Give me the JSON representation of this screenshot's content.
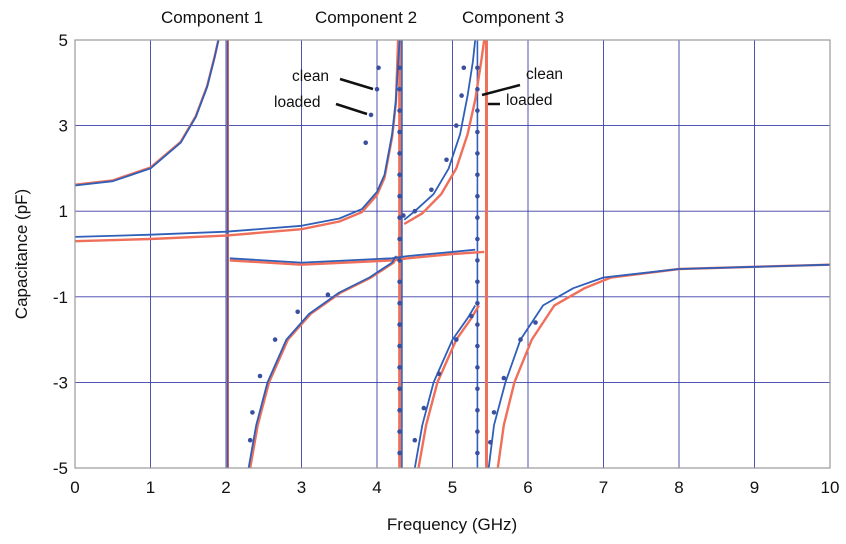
{
  "chart_data": {
    "type": "line",
    "title": "",
    "xlabel": "Frequency (GHz)",
    "ylabel": "Capacitance (pF)",
    "xlim": [
      0,
      10
    ],
    "ylim": [
      -5,
      5
    ],
    "xticks": [
      0,
      1,
      2,
      3,
      4,
      5,
      6,
      7,
      8,
      9,
      10
    ],
    "yticks": [
      -5,
      -3,
      -1,
      1,
      3,
      5
    ],
    "grid": true,
    "legend": "none",
    "component_labels": [
      "Component 1",
      "Component 2",
      "Component 3"
    ],
    "annotations": [
      "clean",
      "loaded",
      "clean",
      "loaded"
    ],
    "colors": {
      "clean": "#2f5fb8",
      "loaded": "#ef6f5a",
      "measured": "#3a4f9e",
      "grid": "#3a3fa8",
      "frame": "#9a9a9a",
      "background": "#ffffff"
    },
    "resonances": {
      "clean": [
        2.02,
        4.33,
        5.33
      ],
      "loaded": [
        2.02,
        4.3,
        5.45
      ]
    },
    "series": [
      {
        "style": "clean",
        "segments": [
          [
            [
              0.0,
              1.6
            ],
            [
              0.5,
              1.7
            ],
            [
              1.0,
              2.0
            ],
            [
              1.4,
              2.6
            ],
            [
              1.6,
              3.2
            ],
            [
              1.75,
              3.9
            ],
            [
              1.85,
              4.6
            ],
            [
              1.9,
              5.0
            ]
          ],
          [
            [
              2.3,
              -5.0
            ],
            [
              2.4,
              -4.0
            ],
            [
              2.55,
              -3.0
            ],
            [
              2.8,
              -2.0
            ],
            [
              3.1,
              -1.4
            ],
            [
              3.5,
              -0.9
            ],
            [
              3.9,
              -0.55
            ],
            [
              4.2,
              -0.2
            ],
            [
              4.25,
              -0.05
            ]
          ],
          [
            [
              0.0,
              0.4
            ],
            [
              1.0,
              0.45
            ],
            [
              2.0,
              0.52
            ],
            [
              3.0,
              0.66
            ],
            [
              3.5,
              0.83
            ],
            [
              3.8,
              1.05
            ],
            [
              4.0,
              1.45
            ],
            [
              4.1,
              1.85
            ],
            [
              4.2,
              2.8
            ],
            [
              4.25,
              3.6
            ],
            [
              4.3,
              5.0
            ]
          ],
          [
            [
              4.5,
              -5.0
            ],
            [
              4.6,
              -4.0
            ],
            [
              4.75,
              -3.0
            ],
            [
              5.0,
              -2.0
            ],
            [
              5.2,
              -1.5
            ],
            [
              5.3,
              -1.2
            ]
          ],
          [
            [
              4.36,
              0.8
            ],
            [
              4.5,
              1.0
            ],
            [
              4.75,
              1.4
            ],
            [
              4.95,
              2.0
            ],
            [
              5.1,
              2.8
            ],
            [
              5.2,
              3.7
            ],
            [
              5.27,
              4.5
            ],
            [
              5.3,
              5.0
            ]
          ],
          [
            [
              5.48,
              -5.0
            ],
            [
              5.55,
              -4.0
            ],
            [
              5.7,
              -3.0
            ],
            [
              5.9,
              -2.0
            ],
            [
              6.2,
              -1.2
            ],
            [
              6.6,
              -0.8
            ],
            [
              7.0,
              -0.55
            ],
            [
              8.0,
              -0.35
            ],
            [
              9.0,
              -0.3
            ],
            [
              10.0,
              -0.25
            ]
          ],
          [
            [
              2.05,
              -0.1
            ],
            [
              3.0,
              -0.2
            ],
            [
              4.2,
              -0.1
            ],
            [
              4.4,
              -0.05
            ],
            [
              5.0,
              0.05
            ],
            [
              5.3,
              0.1
            ]
          ]
        ]
      },
      {
        "style": "loaded",
        "segments": [
          [
            [
              0.0,
              1.62
            ],
            [
              0.5,
              1.72
            ],
            [
              1.0,
              2.02
            ],
            [
              1.4,
              2.62
            ],
            [
              1.6,
              3.22
            ],
            [
              1.75,
              3.92
            ],
            [
              1.85,
              4.62
            ],
            [
              1.9,
              5.0
            ]
          ],
          [
            [
              2.32,
              -5.0
            ],
            [
              2.42,
              -4.0
            ],
            [
              2.57,
              -3.0
            ],
            [
              2.82,
              -2.0
            ],
            [
              3.12,
              -1.4
            ],
            [
              3.52,
              -0.9
            ],
            [
              3.92,
              -0.55
            ],
            [
              4.22,
              -0.2
            ],
            [
              4.27,
              -0.05
            ]
          ],
          [
            [
              0.0,
              0.3
            ],
            [
              1.0,
              0.35
            ],
            [
              2.0,
              0.43
            ],
            [
              3.0,
              0.58
            ],
            [
              3.5,
              0.76
            ],
            [
              3.8,
              0.98
            ],
            [
              4.0,
              1.38
            ],
            [
              4.1,
              1.78
            ],
            [
              4.2,
              2.73
            ],
            [
              4.25,
              3.53
            ],
            [
              4.28,
              5.0
            ]
          ],
          [
            [
              4.55,
              -5.0
            ],
            [
              4.65,
              -4.0
            ],
            [
              4.8,
              -3.0
            ],
            [
              5.05,
              -2.0
            ],
            [
              5.25,
              -1.5
            ],
            [
              5.35,
              -1.2
            ]
          ],
          [
            [
              4.36,
              0.7
            ],
            [
              4.6,
              0.95
            ],
            [
              4.85,
              1.4
            ],
            [
              5.05,
              2.0
            ],
            [
              5.2,
              2.8
            ],
            [
              5.3,
              3.6
            ],
            [
              5.38,
              4.5
            ],
            [
              5.42,
              5.0
            ]
          ],
          [
            [
              5.6,
              -5.0
            ],
            [
              5.68,
              -4.0
            ],
            [
              5.82,
              -3.0
            ],
            [
              6.05,
              -2.0
            ],
            [
              6.35,
              -1.2
            ],
            [
              6.75,
              -0.8
            ],
            [
              7.1,
              -0.55
            ],
            [
              8.0,
              -0.35
            ],
            [
              9.0,
              -0.3
            ],
            [
              10.0,
              -0.25
            ]
          ],
          [
            [
              2.05,
              -0.15
            ],
            [
              3.0,
              -0.25
            ],
            [
              4.2,
              -0.15
            ],
            [
              4.4,
              -0.1
            ],
            [
              5.0,
              0.0
            ],
            [
              5.42,
              0.05
            ]
          ]
        ]
      },
      {
        "style": "measured",
        "points": [
          [
            4.02,
            4.35
          ],
          [
            4.0,
            3.85
          ],
          [
            3.92,
            3.25
          ],
          [
            3.85,
            2.6
          ],
          [
            2.32,
            -4.35
          ],
          [
            2.35,
            -3.7
          ],
          [
            2.45,
            -2.85
          ],
          [
            2.65,
            -2.0
          ],
          [
            2.95,
            -1.35
          ],
          [
            3.35,
            -0.95
          ],
          [
            4.3,
            4.35
          ],
          [
            4.3,
            3.85
          ],
          [
            4.3,
            3.35
          ],
          [
            4.3,
            2.85
          ],
          [
            4.3,
            2.35
          ],
          [
            4.3,
            1.85
          ],
          [
            4.3,
            1.35
          ],
          [
            4.3,
            0.85
          ],
          [
            4.3,
            0.35
          ],
          [
            4.3,
            -0.15
          ],
          [
            4.3,
            -0.65
          ],
          [
            4.3,
            -1.15
          ],
          [
            4.3,
            -1.65
          ],
          [
            4.3,
            -2.15
          ],
          [
            4.3,
            -2.65
          ],
          [
            4.3,
            -3.15
          ],
          [
            4.3,
            -3.65
          ],
          [
            4.3,
            -4.15
          ],
          [
            4.3,
            -4.65
          ],
          [
            5.15,
            4.35
          ],
          [
            5.12,
            3.7
          ],
          [
            5.05,
            3.0
          ],
          [
            4.92,
            2.2
          ],
          [
            4.72,
            1.5
          ],
          [
            4.5,
            1.0
          ],
          [
            4.35,
            0.9
          ],
          [
            4.5,
            -4.35
          ],
          [
            4.62,
            -3.6
          ],
          [
            4.82,
            -2.8
          ],
          [
            5.05,
            -2.0
          ],
          [
            5.25,
            -1.45
          ],
          [
            5.33,
            4.35
          ],
          [
            5.33,
            3.85
          ],
          [
            5.33,
            3.35
          ],
          [
            5.33,
            2.85
          ],
          [
            5.33,
            2.35
          ],
          [
            5.33,
            1.85
          ],
          [
            5.33,
            1.35
          ],
          [
            5.33,
            0.85
          ],
          [
            5.33,
            0.35
          ],
          [
            5.33,
            -0.15
          ],
          [
            5.33,
            -0.65
          ],
          [
            5.33,
            -1.15
          ],
          [
            5.33,
            -1.65
          ],
          [
            5.33,
            -2.15
          ],
          [
            5.33,
            -2.65
          ],
          [
            5.33,
            -3.15
          ],
          [
            5.33,
            -3.65
          ],
          [
            5.33,
            -4.15
          ],
          [
            5.33,
            -4.65
          ],
          [
            5.5,
            -4.4
          ],
          [
            5.55,
            -3.7
          ],
          [
            5.68,
            -2.9
          ],
          [
            5.9,
            -2.0
          ],
          [
            6.1,
            -1.6
          ]
        ]
      }
    ]
  }
}
